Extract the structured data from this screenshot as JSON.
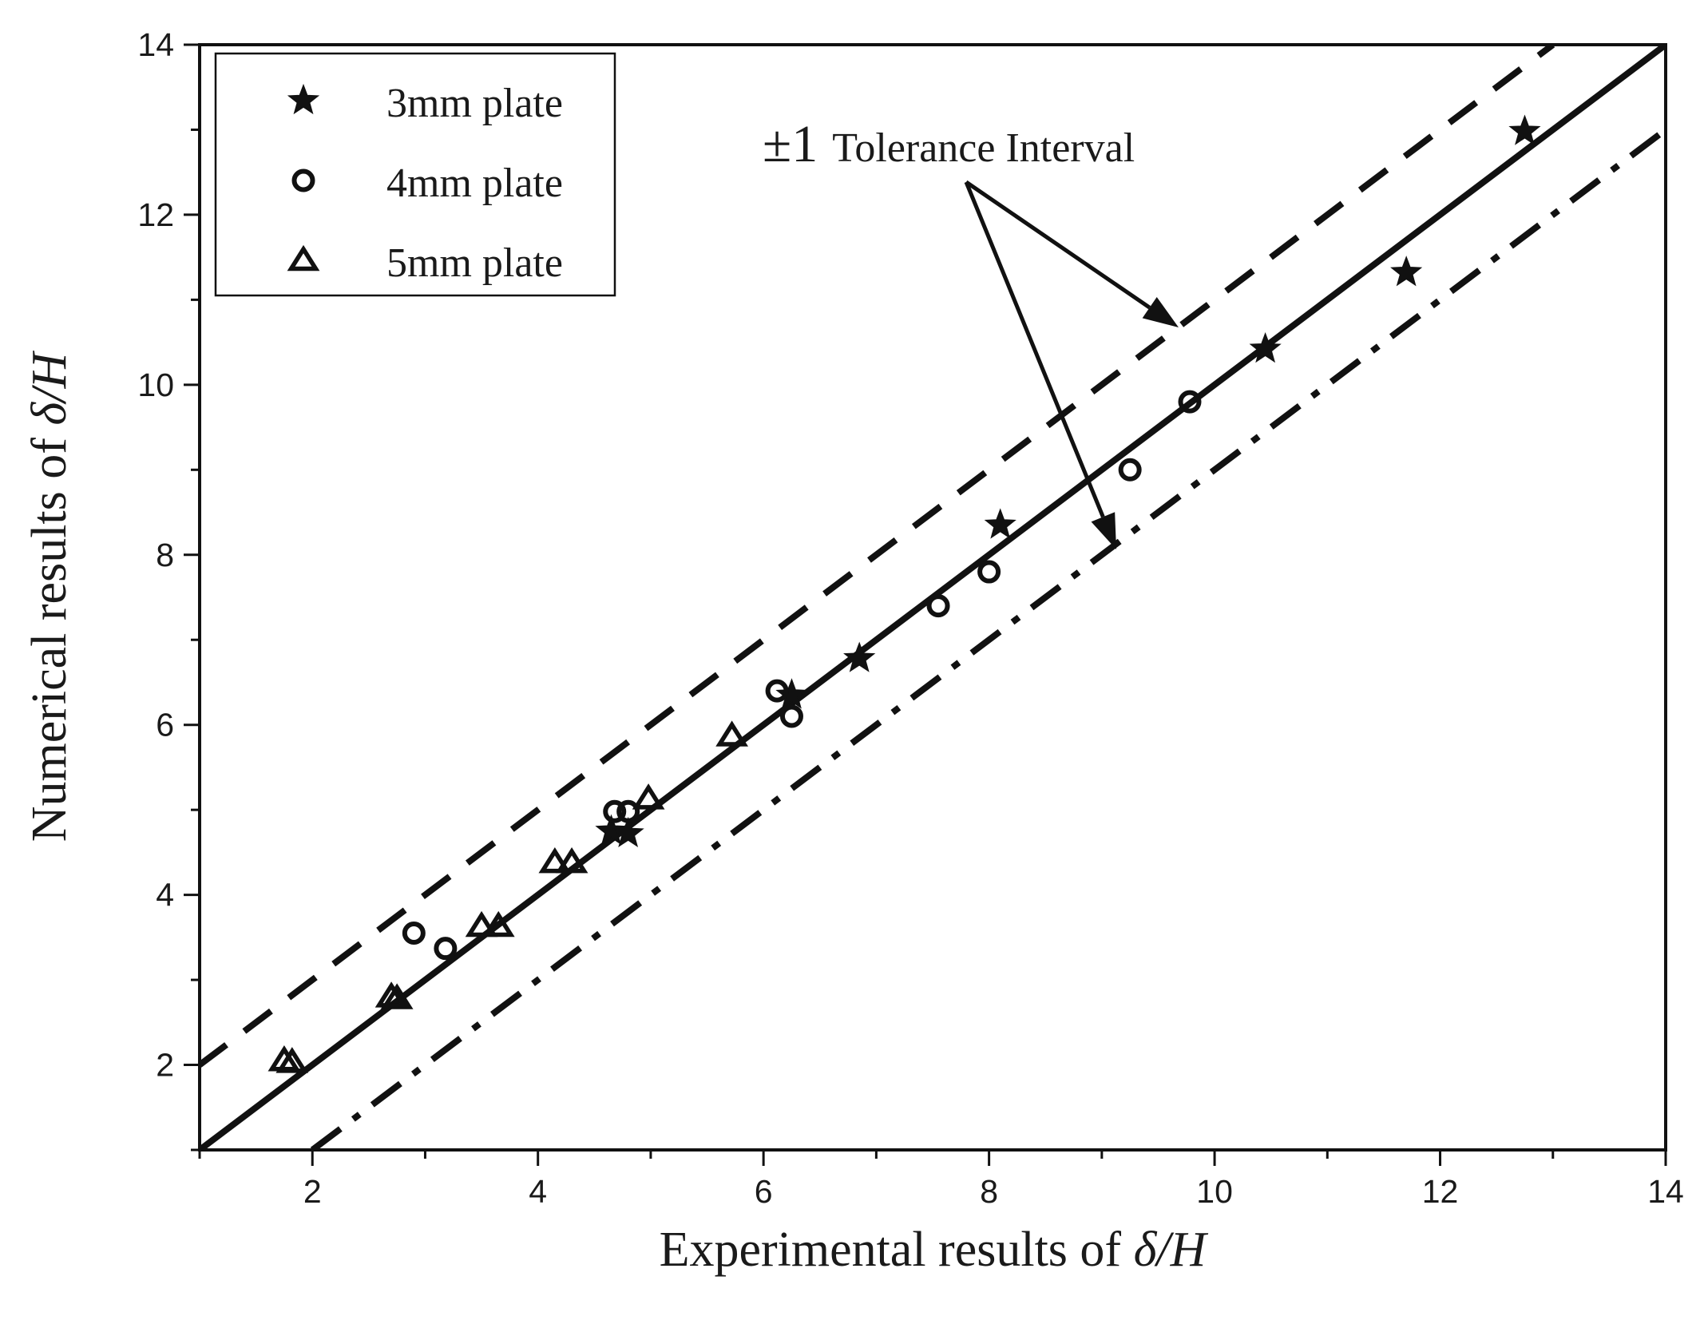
{
  "chart_data": {
    "type": "scatter",
    "xlabel_prefix": "Experimental results of ",
    "ylabel_prefix": "Numerical results of ",
    "label_symbol": "δ/H",
    "xlim": [
      1,
      14
    ],
    "ylim": [
      1,
      14
    ],
    "xticks": [
      2,
      4,
      6,
      8,
      10,
      12,
      14
    ],
    "yticks": [
      2,
      4,
      6,
      8,
      10,
      12,
      14
    ],
    "legend_position": "top-left",
    "series": [
      {
        "name": "3mm plate",
        "marker": "star",
        "points": [
          [
            4.65,
            4.75
          ],
          [
            4.8,
            4.72
          ],
          [
            6.25,
            6.35
          ],
          [
            6.85,
            6.78
          ],
          [
            8.1,
            8.35
          ],
          [
            10.45,
            10.42
          ],
          [
            11.7,
            11.32
          ],
          [
            12.75,
            12.98
          ]
        ]
      },
      {
        "name": "4mm plate",
        "marker": "circle",
        "points": [
          [
            2.9,
            3.55
          ],
          [
            3.18,
            3.37
          ],
          [
            4.68,
            4.98
          ],
          [
            4.8,
            4.98
          ],
          [
            6.12,
            6.4
          ],
          [
            6.25,
            6.1
          ],
          [
            7.55,
            7.4
          ],
          [
            8.0,
            7.8
          ],
          [
            9.25,
            9.0
          ],
          [
            9.78,
            9.8
          ]
        ]
      },
      {
        "name": "5mm plate",
        "marker": "triangle",
        "points": [
          [
            1.75,
            2.05
          ],
          [
            1.82,
            2.03
          ],
          [
            2.7,
            2.8
          ],
          [
            2.75,
            2.78
          ],
          [
            3.5,
            3.63
          ],
          [
            3.65,
            3.63
          ],
          [
            4.15,
            4.38
          ],
          [
            4.3,
            4.38
          ],
          [
            4.98,
            5.13
          ],
          [
            5.72,
            5.87
          ]
        ]
      }
    ],
    "reference_lines": [
      {
        "name": "y = x",
        "style": "solid",
        "from": [
          1,
          1
        ],
        "to": [
          14,
          14
        ]
      },
      {
        "name": "y = x + 1",
        "style": "dashed",
        "from": [
          1,
          2
        ],
        "to": [
          13,
          14
        ]
      },
      {
        "name": "y = x - 1",
        "style": "dashdot",
        "from": [
          2,
          1
        ],
        "to": [
          14,
          13
        ]
      }
    ],
    "annotation": {
      "symbol": "±1",
      "text": "Tolerance Interval"
    }
  }
}
